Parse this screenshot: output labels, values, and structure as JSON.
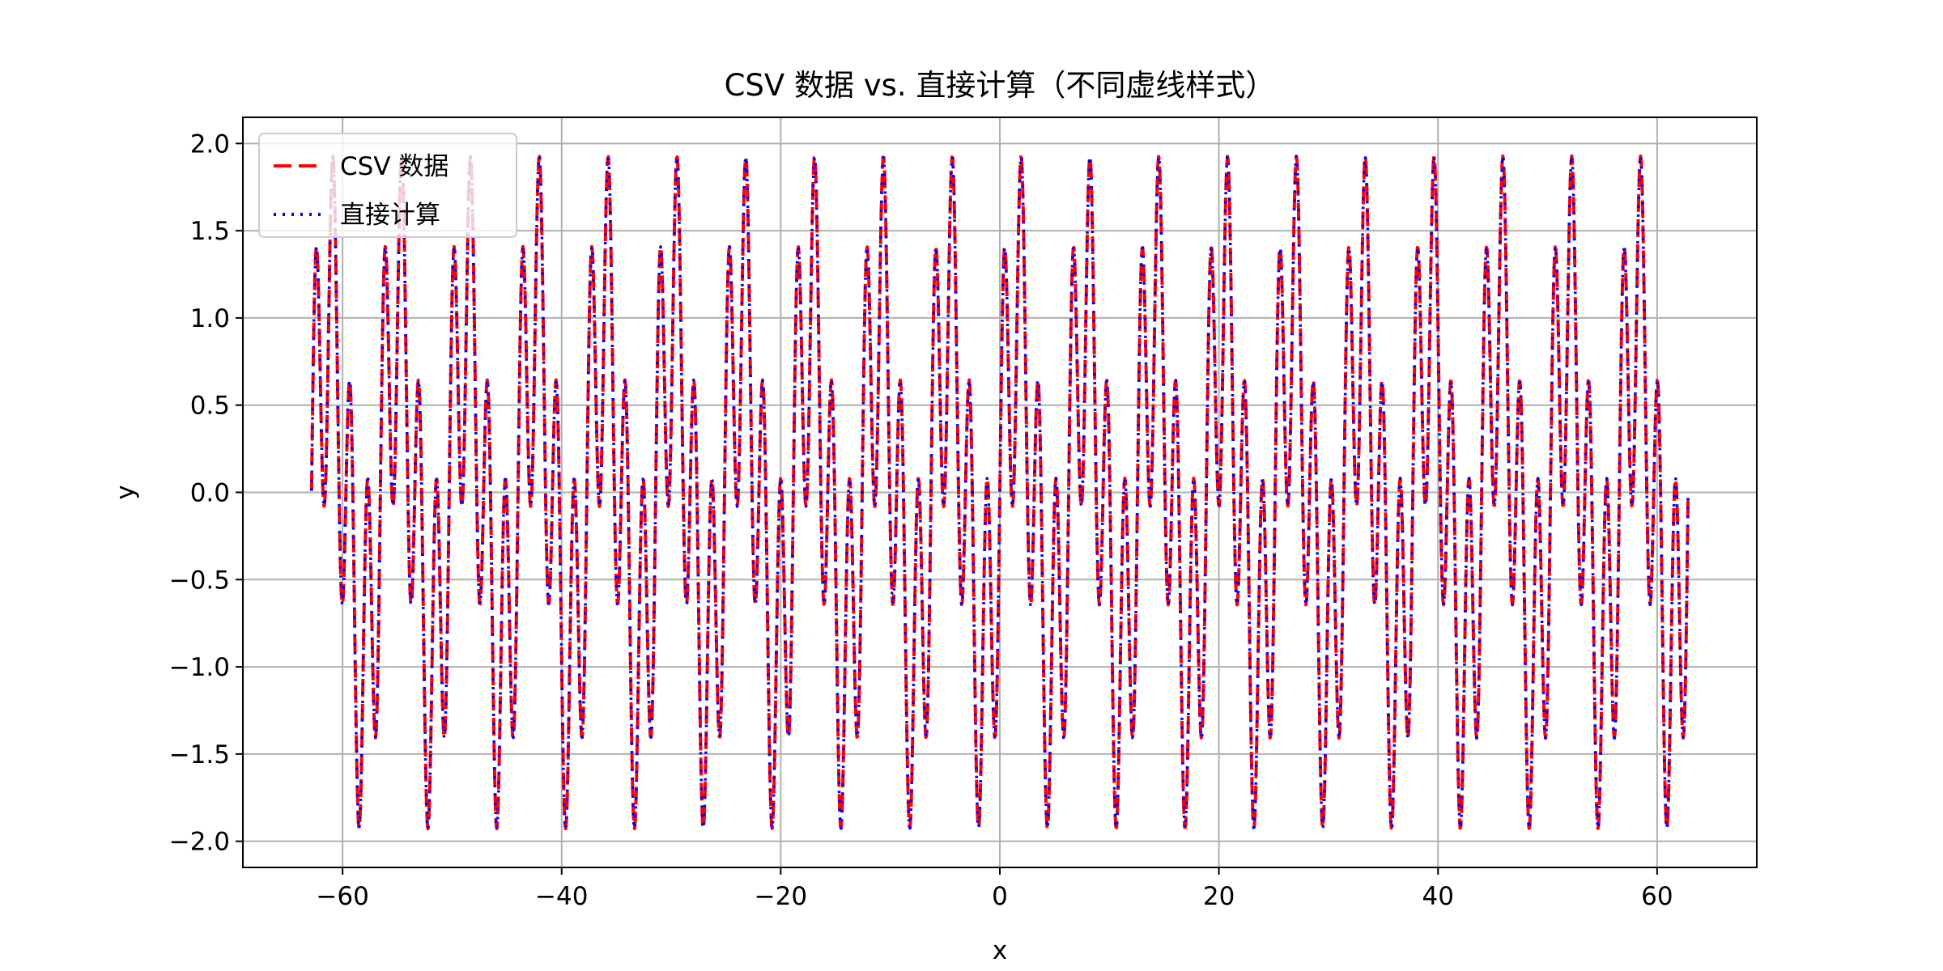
{
  "chart_data": {
    "type": "line",
    "title": "CSV 数据 vs. 直接计算（不同虚线样式）",
    "xlabel": "x",
    "ylabel": "y",
    "xlim": [
      -69.1,
      69.1
    ],
    "ylim": [
      -2.15,
      2.15
    ],
    "x_ticks": [
      -60,
      -40,
      -20,
      0,
      20,
      40,
      60
    ],
    "x_tick_labels": [
      "−60",
      "−40",
      "−20",
      "0",
      "20",
      "40",
      "60"
    ],
    "y_ticks": [
      2.0,
      1.5,
      1.0,
      0.5,
      0.0,
      -0.5,
      -1.0,
      -1.5,
      -2.0
    ],
    "y_tick_labels": [
      "2.0",
      "1.5",
      "1.0",
      "0.5",
      "0.0",
      "−0.5",
      "−1.0",
      "−1.5",
      "−2.0"
    ],
    "grid": true,
    "legend_position": "upper-left",
    "series": [
      {
        "name": "CSV 数据",
        "color": "#ff0000",
        "linestyle": "dashed",
        "function": "sin(x) + sin(4x)",
        "x_range": [
          -62.83,
          62.83
        ],
        "num_points": 2000
      },
      {
        "name": "直接计算",
        "color": "#0000ff",
        "linestyle": "dotted",
        "function": "sin(x) + sin(4x)",
        "x_range": [
          -62.83,
          62.83
        ],
        "num_points": 2000
      }
    ]
  }
}
